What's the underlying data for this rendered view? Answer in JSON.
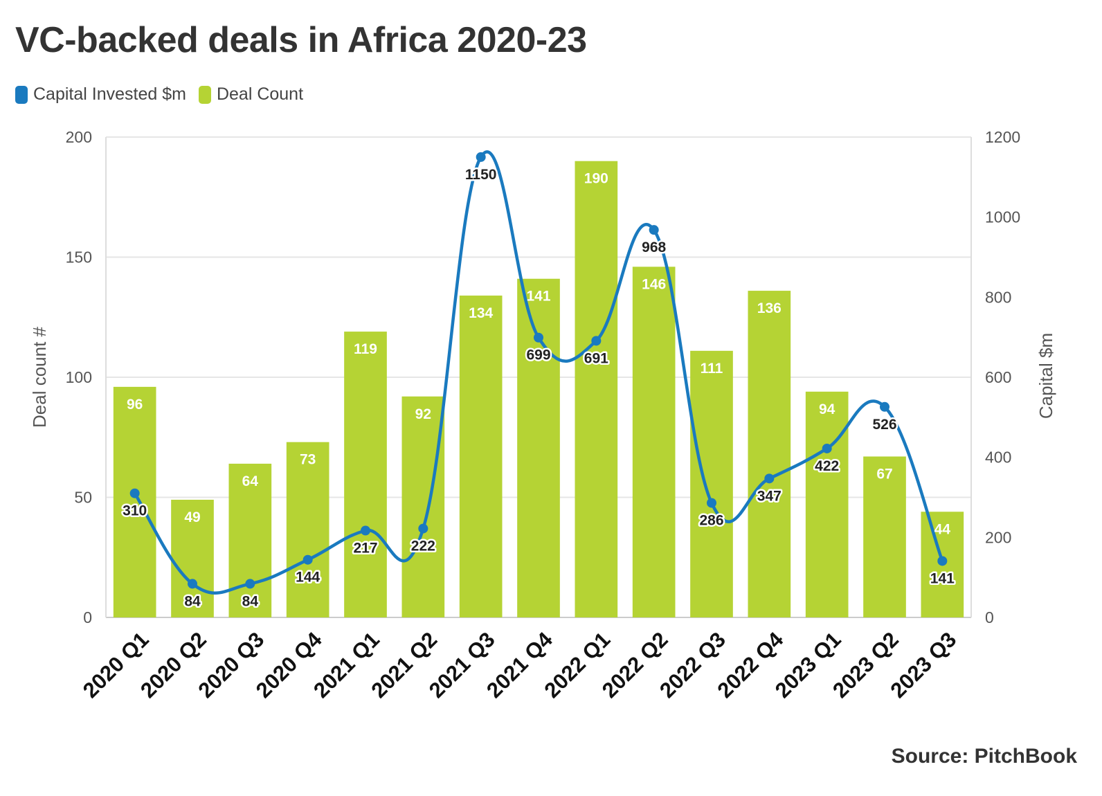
{
  "chart_data": {
    "type": "bar",
    "title": "VC-backed deals in Africa 2020-23",
    "source": "Source: PitchBook",
    "categories": [
      "2020 Q1",
      "2020 Q2",
      "2020 Q3",
      "2020 Q4",
      "2021 Q1",
      "2021 Q2",
      "2021 Q3",
      "2021 Q4",
      "2022 Q1",
      "2022 Q2",
      "2022 Q3",
      "2022 Q4",
      "2023 Q1",
      "2023 Q2",
      "2023 Q3"
    ],
    "series": [
      {
        "name": "Capital Invested $m",
        "type": "line",
        "axis": "right",
        "color": "#1a7abf",
        "values": [
          310,
          84,
          84,
          144,
          217,
          222,
          1150,
          699,
          691,
          968,
          286,
          347,
          422,
          526,
          141
        ]
      },
      {
        "name": "Deal Count",
        "type": "bar",
        "axis": "left",
        "color": "#b5d334",
        "values": [
          96,
          49,
          64,
          73,
          119,
          92,
          134,
          141,
          190,
          146,
          111,
          136,
          94,
          67,
          44
        ]
      }
    ],
    "ylabel": "Deal count #",
    "y2label": "Capital $m",
    "ylim": [
      0,
      200
    ],
    "y2lim": [
      0,
      1200
    ],
    "yticks": [
      0,
      50,
      100,
      150,
      200
    ],
    "y2ticks": [
      0,
      200,
      400,
      600,
      800,
      1000,
      1200
    ],
    "grid": true,
    "legend": "top-left"
  }
}
